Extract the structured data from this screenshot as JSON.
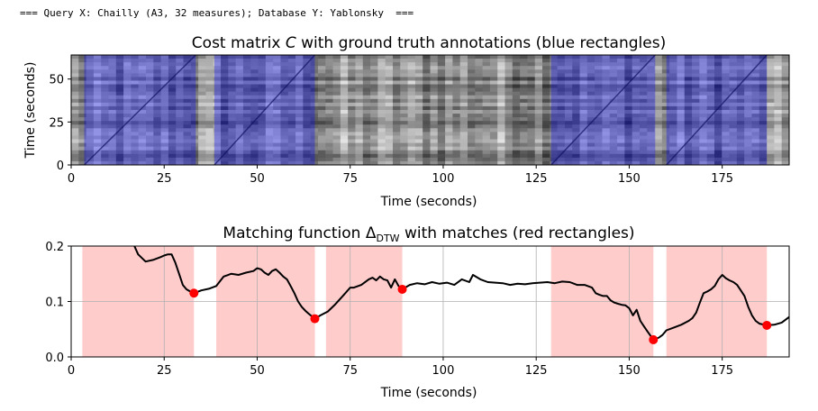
{
  "header": {
    "text": "=== Query X: Chailly (A3, 32 measures); Database Y: Yablonsky  ==="
  },
  "chart_data": [
    {
      "type": "heatmap",
      "title_parts": [
        "Cost matrix ",
        "C",
        " with ground truth annotations (blue rectangles)"
      ],
      "xlabel": "Time (seconds)",
      "ylabel": "Time (seconds)",
      "xlim": [
        0,
        193
      ],
      "ylim": [
        0,
        64
      ],
      "xticks": [
        0,
        25,
        50,
        75,
        100,
        125,
        150,
        175
      ],
      "yticks": [
        0,
        25,
        50
      ],
      "annotations": [
        [
          3.5,
          33.5
        ],
        [
          38.5,
          65.5
        ],
        [
          129,
          157
        ],
        [
          160,
          187
        ]
      ],
      "annotation_color": "#0000ff",
      "colormap": "gray_r"
    },
    {
      "type": "line",
      "title_parts": [
        "Matching function Δ",
        "DTW",
        " with matches (red rectangles)"
      ],
      "xlabel": "Time (seconds)",
      "ylabel": "",
      "xlim": [
        0,
        193
      ],
      "ylim": [
        0,
        0.2
      ],
      "xticks": [
        0,
        25,
        50,
        75,
        100,
        125,
        150,
        175
      ],
      "yticks": [
        0.0,
        0.1,
        0.2
      ],
      "ytick_labels": [
        "0.0",
        "0.1",
        "0.2"
      ],
      "grid": true,
      "line_color": "#000000",
      "match_color": "#ff0000",
      "rect_color": "#ffcccc",
      "match_intervals": [
        [
          3,
          33
        ],
        [
          39,
          65.5
        ],
        [
          68.5,
          89
        ],
        [
          129,
          156.5
        ],
        [
          160,
          187
        ]
      ],
      "match_points": [
        [
          33,
          0.115
        ],
        [
          65.5,
          0.069
        ],
        [
          89,
          0.122
        ],
        [
          156.5,
          0.031
        ],
        [
          187,
          0.057
        ]
      ],
      "series": [
        {
          "x": [
            17,
            18,
            20,
            22,
            24,
            25,
            26,
            27,
            28,
            29,
            30,
            31,
            32,
            33,
            35,
            37,
            39,
            41,
            43,
            45,
            47,
            49,
            50,
            51,
            52,
            53,
            54,
            55,
            56,
            57,
            58,
            59,
            60,
            61,
            62,
            63,
            64,
            65.5,
            67,
            69,
            71,
            73,
            75,
            76,
            78,
            80,
            81,
            82,
            83,
            84,
            85,
            86,
            87,
            88,
            89,
            91,
            93,
            95,
            97,
            99,
            101,
            103,
            105,
            107,
            108,
            110,
            112,
            114,
            116,
            118,
            120,
            122,
            124,
            126,
            128,
            130,
            132,
            134,
            136,
            138,
            140,
            141,
            142,
            143,
            144,
            145,
            146,
            147,
            148,
            149,
            150,
            151,
            152,
            153,
            154,
            155,
            156.5,
            158,
            159,
            160,
            162,
            164,
            166,
            167,
            168,
            169,
            170,
            171,
            172,
            173,
            174,
            175,
            176,
            177,
            178,
            179,
            180,
            181,
            182,
            183,
            184,
            185,
            187,
            189,
            191,
            193
          ],
          "y": [
            0.2,
            0.185,
            0.172,
            0.175,
            0.18,
            0.183,
            0.185,
            0.185,
            0.17,
            0.15,
            0.13,
            0.122,
            0.118,
            0.115,
            0.12,
            0.123,
            0.128,
            0.145,
            0.15,
            0.148,
            0.152,
            0.155,
            0.16,
            0.158,
            0.152,
            0.148,
            0.155,
            0.158,
            0.152,
            0.145,
            0.14,
            0.128,
            0.115,
            0.1,
            0.09,
            0.083,
            0.077,
            0.069,
            0.075,
            0.082,
            0.095,
            0.11,
            0.125,
            0.125,
            0.13,
            0.14,
            0.143,
            0.138,
            0.145,
            0.14,
            0.138,
            0.125,
            0.14,
            0.128,
            0.122,
            0.13,
            0.133,
            0.131,
            0.135,
            0.132,
            0.134,
            0.13,
            0.14,
            0.135,
            0.148,
            0.14,
            0.135,
            0.134,
            0.133,
            0.13,
            0.132,
            0.131,
            0.133,
            0.134,
            0.135,
            0.133,
            0.136,
            0.135,
            0.13,
            0.13,
            0.125,
            0.115,
            0.112,
            0.11,
            0.11,
            0.102,
            0.098,
            0.096,
            0.094,
            0.093,
            0.088,
            0.075,
            0.085,
            0.065,
            0.055,
            0.045,
            0.031,
            0.035,
            0.04,
            0.048,
            0.053,
            0.058,
            0.065,
            0.07,
            0.08,
            0.098,
            0.115,
            0.118,
            0.122,
            0.128,
            0.14,
            0.148,
            0.142,
            0.138,
            0.135,
            0.13,
            0.12,
            0.11,
            0.09,
            0.075,
            0.065,
            0.06,
            0.057,
            0.058,
            0.062,
            0.072
          ]
        }
      ]
    }
  ]
}
